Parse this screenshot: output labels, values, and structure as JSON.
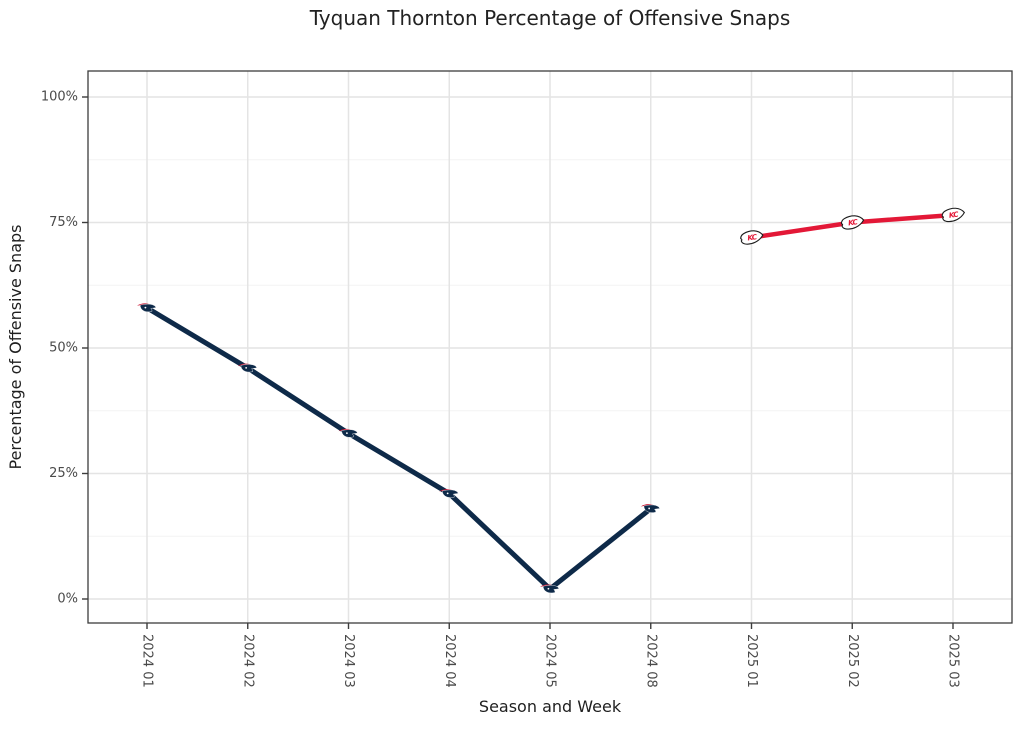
{
  "chart_data": {
    "type": "line",
    "title": "Tyquan Thornton Percentage of Offensive Snaps",
    "xlabel": "Season and Week",
    "ylabel": "Percentage of Offensive Snaps",
    "categories": [
      "2024 01",
      "2024 02",
      "2024 03",
      "2024 04",
      "2024 05",
      "2024 08",
      "2025 01",
      "2025 02",
      "2025 03"
    ],
    "y_axis": {
      "ticks": [
        0,
        25,
        50,
        75,
        100
      ],
      "tick_labels": [
        "0%",
        "25%",
        "50%",
        "75%",
        "100%"
      ],
      "minor_ticks": [
        12.5,
        37.5,
        62.5,
        87.5
      ],
      "range_padded": [
        -4.8,
        104.8
      ]
    },
    "grid": {
      "major_color": "#e4e4e4",
      "minor_color": "#f3f3f3",
      "panel_border_color": "#3c3c3c",
      "background": "#ffffff"
    },
    "legend": "none (series identified by team logo markers)",
    "series": [
      {
        "id": "patriots",
        "marker": "patriots-logo",
        "color": "#0e2a49",
        "line_width": 5,
        "points": [
          {
            "x": "2024 01",
            "y": 58
          },
          {
            "x": "2024 02",
            "y": 46
          },
          {
            "x": "2024 03",
            "y": 33
          },
          {
            "x": "2024 04",
            "y": 21
          },
          {
            "x": "2024 05",
            "y": 2
          },
          {
            "x": "2024 08",
            "y": 18
          }
        ]
      },
      {
        "id": "chiefs",
        "marker": "chiefs-logo",
        "color": "#e31837",
        "line_width": 4.5,
        "points": [
          {
            "x": "2025 01",
            "y": 72
          },
          {
            "x": "2025 02",
            "y": 75
          },
          {
            "x": "2025 03",
            "y": 76.5
          }
        ]
      }
    ]
  }
}
